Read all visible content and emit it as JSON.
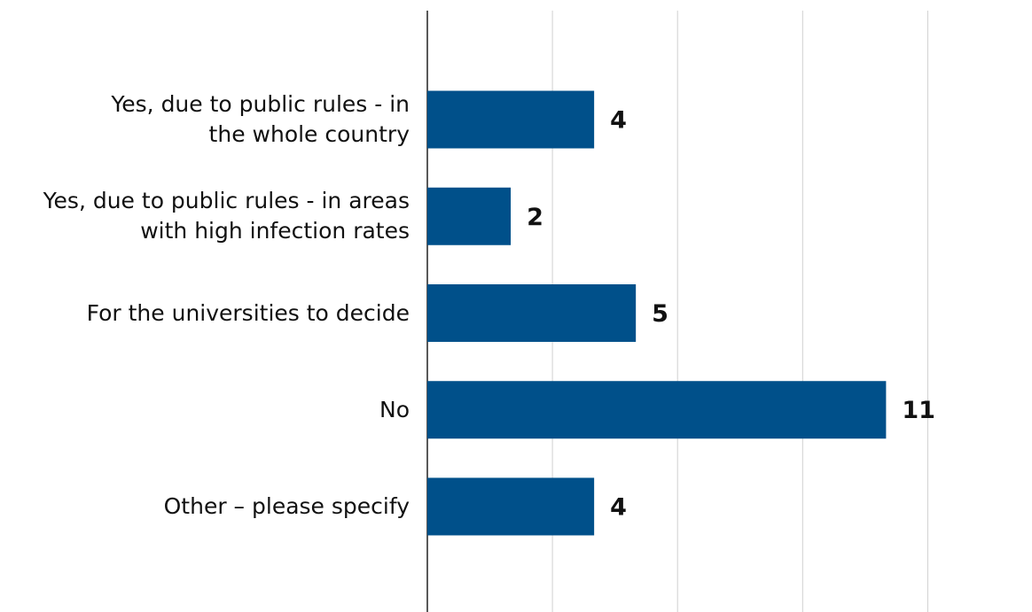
{
  "chart_data": {
    "type": "barh",
    "categories": [
      "Yes, due to public rules - in\nthe whole country",
      "Yes, due to public rules - in areas\nwith high infection rates",
      "For the universities to decide",
      "No",
      "Other – please specify"
    ],
    "values": [
      4,
      2,
      5,
      11,
      4
    ],
    "color": "#00508a",
    "xlim": [
      0,
      14.5
    ],
    "xticks": [
      0,
      3,
      6,
      9,
      12
    ],
    "grid": true
  }
}
